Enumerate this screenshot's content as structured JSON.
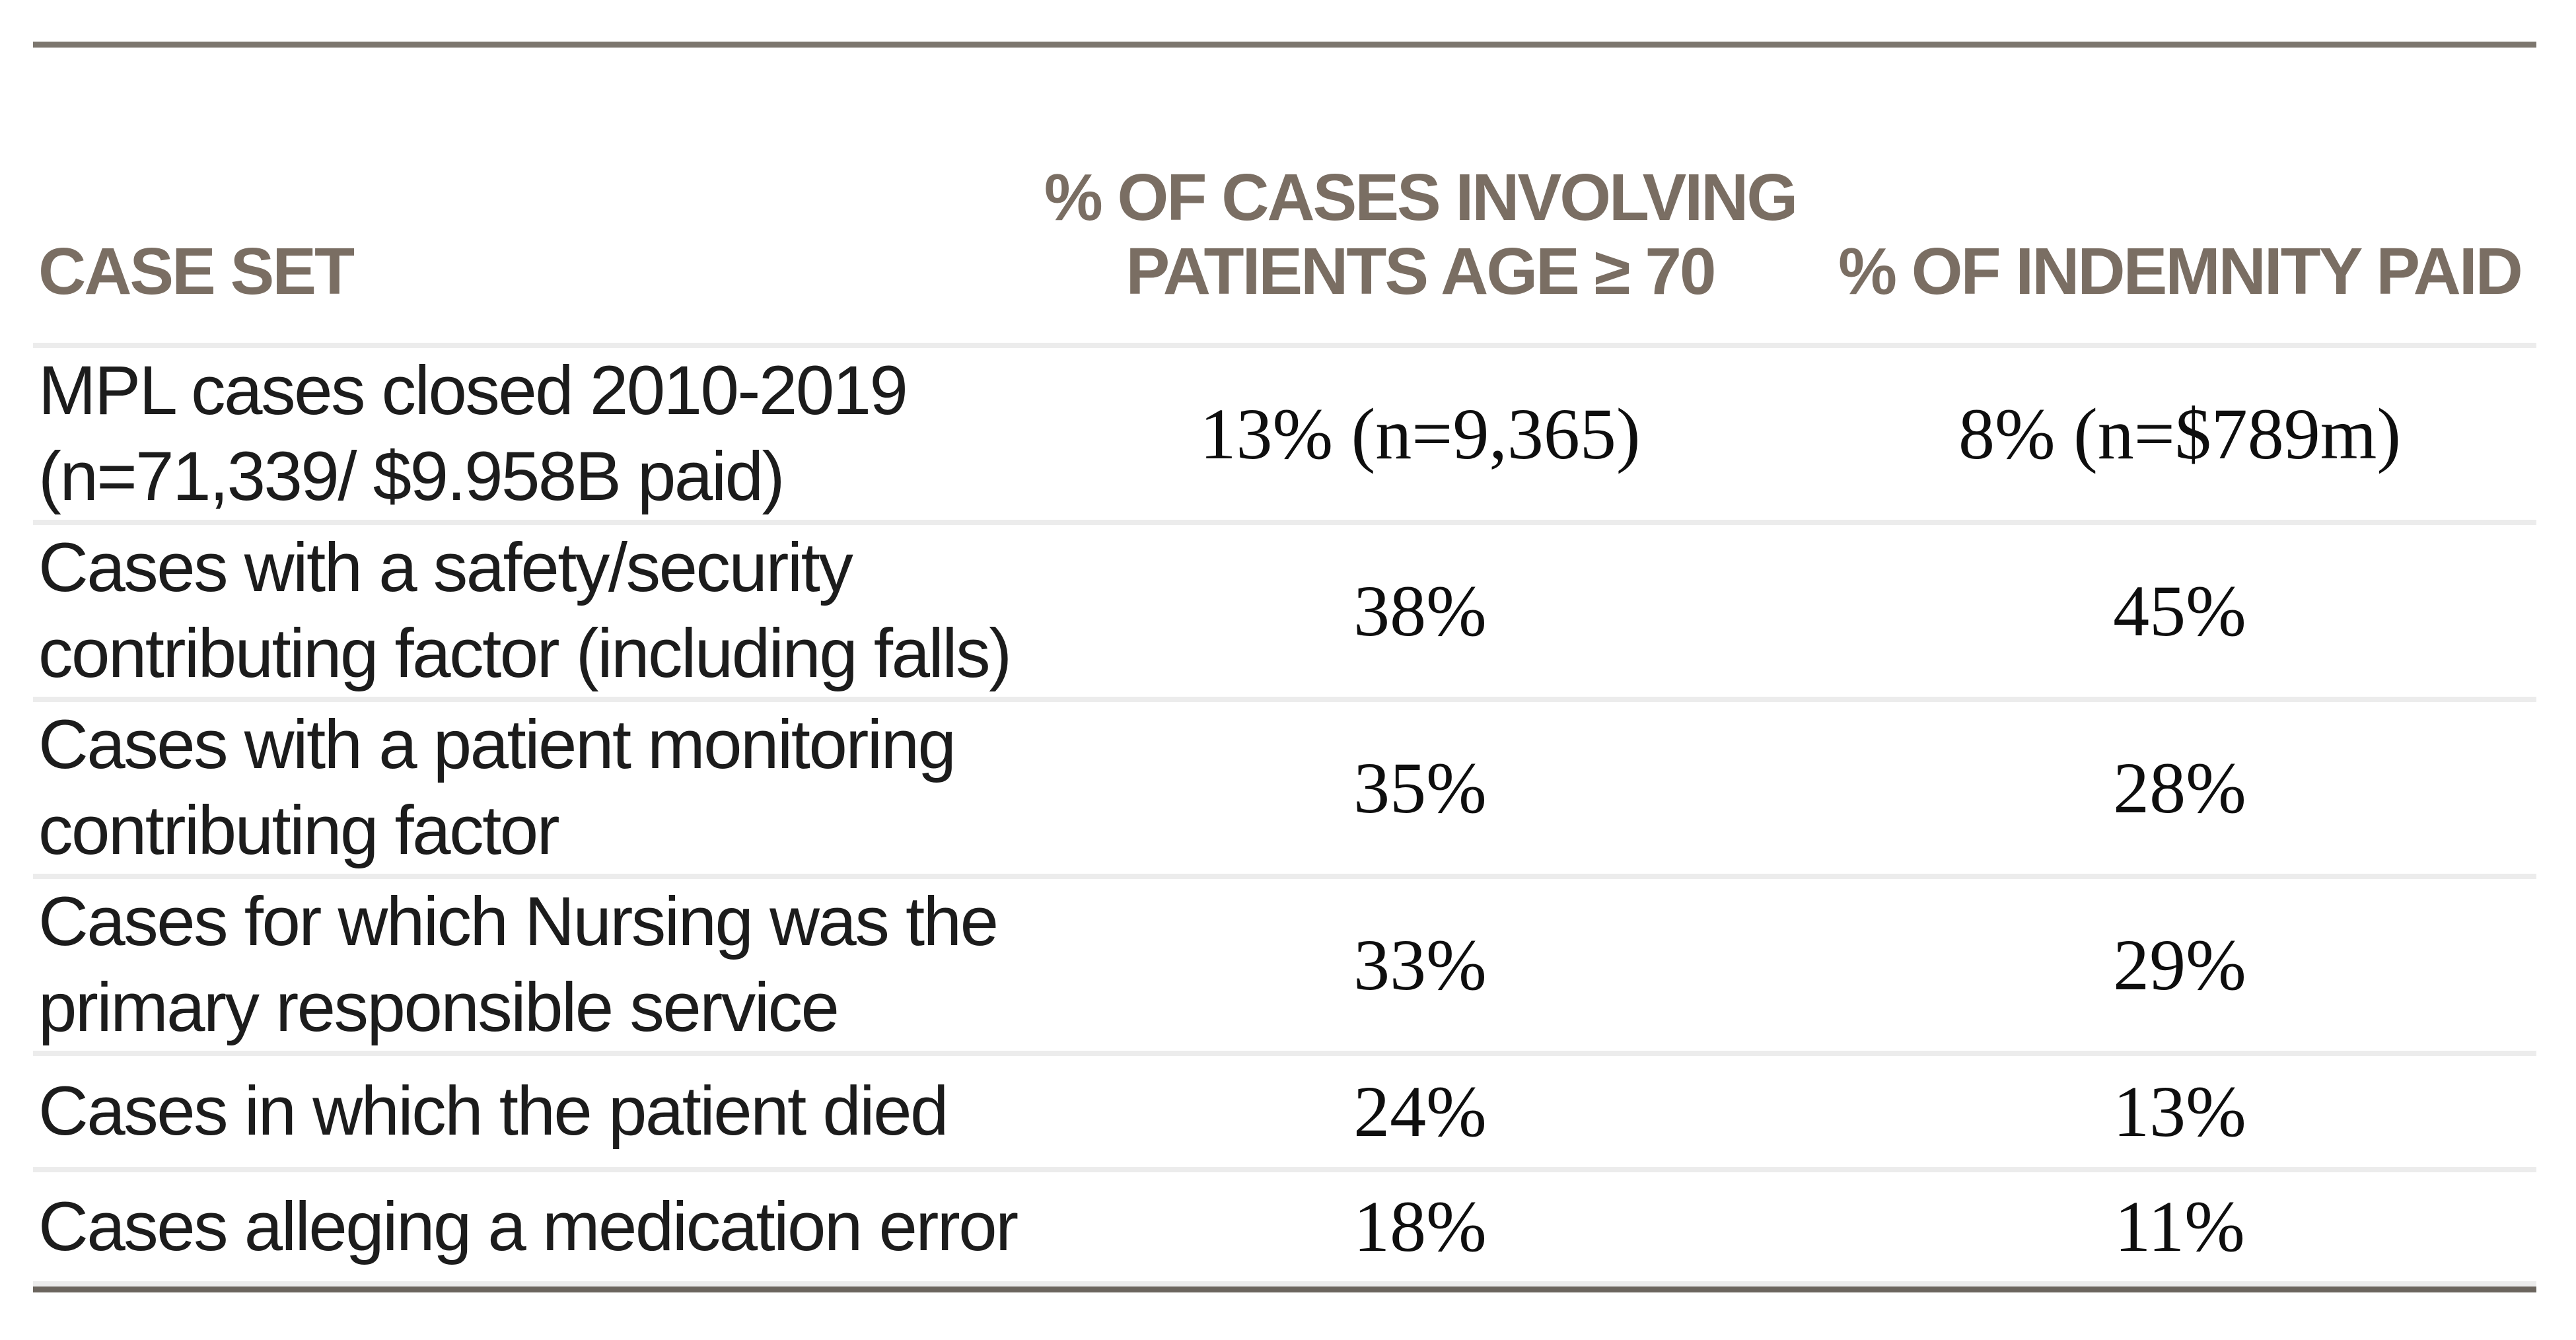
{
  "table": {
    "columns": [
      {
        "label": "CASE SET"
      },
      {
        "label_line1": "% OF CASES INVOLVING",
        "label_line2": "PATIENTS AGE ≥ 70"
      },
      {
        "label": "% OF INDEMNITY PAID"
      }
    ],
    "rows": [
      {
        "case_set": [
          "MPL cases closed 2010-2019",
          "(n=71,339/ $9.958B paid)"
        ],
        "age70": "13% (n=9,365)",
        "indemnity": "8% (n=$789m)"
      },
      {
        "case_set": [
          "Cases with a safety/security",
          "contributing factor (including falls)"
        ],
        "age70": "38%",
        "indemnity": "45%"
      },
      {
        "case_set": [
          "Cases with a patient monitoring",
          "contributing factor"
        ],
        "age70": "35%",
        "indemnity": "28%"
      },
      {
        "case_set": [
          "Cases for which Nursing was the",
          "primary responsible service"
        ],
        "age70": "33%",
        "indemnity": "29%"
      },
      {
        "case_set": [
          "Cases in which the patient died"
        ],
        "age70": "24%",
        "indemnity": "13%"
      },
      {
        "case_set": [
          "Cases alleging a medication error"
        ],
        "age70": "18%",
        "indemnity": "11%"
      }
    ],
    "colors": {
      "header_text": "#7a6e63",
      "top_rule": "#7c766e",
      "row_separator": "#ececec",
      "bottom_rule_dark": "#6b655e",
      "body_text": "#1c1c1c",
      "value_text": "#0e0e0e"
    }
  }
}
